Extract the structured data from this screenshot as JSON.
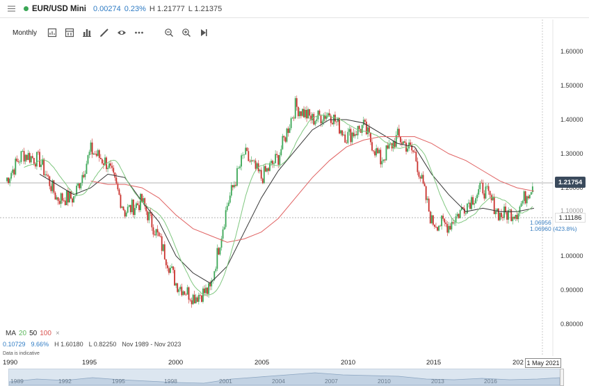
{
  "header": {
    "symbol": "EUR/USD Mini",
    "change": "0.00274",
    "change_pct": "0.23%",
    "high": "H 1.21777",
    "low": "L 1.21375",
    "status_color": "#3aa655"
  },
  "toolbar": {
    "period": "Monthly",
    "icons": [
      "chart-type-icon",
      "indicators-icon",
      "bar-chart-icon",
      "draw-icon",
      "eye-icon",
      "more-icon",
      "zoom-out-icon",
      "zoom-in-icon",
      "skip-to-end-icon"
    ]
  },
  "legend": {
    "ma_label": "MA",
    "ma_20": "20",
    "ma_50": "50",
    "ma_100": "100",
    "ma_close": "×",
    "stats_change": "0.10729",
    "stats_pct": "9.66%",
    "stats_high": "H 1.60180",
    "stats_low": "L 0.82250",
    "stats_range": "Nov 1989 - Nov 2023",
    "disclaimer": "Data is indicative"
  },
  "price_axis": {
    "labels": [
      "1.60000",
      "1.50000",
      "1.40000",
      "1.30000",
      "1.20000",
      "1.10000",
      "1.00000",
      "0.90000",
      "0.80000"
    ],
    "last_price": "1.21754",
    "ref_price": "1.11186",
    "note_1": "1.06956",
    "note_2": "1.06960 (423.8%)"
  },
  "x_axis": {
    "ticks": [
      "1990",
      "1995",
      "2000",
      "2005",
      "2010",
      "2015",
      "202"
    ],
    "date_tag": "1 May 2021"
  },
  "navigator": {
    "ticks": [
      "1989",
      "1992",
      "1995",
      "1998",
      "2001",
      "2004",
      "2007",
      "2010",
      "2013",
      "2016"
    ]
  },
  "chart_data": {
    "type": "line",
    "ylim": [
      0.75,
      1.65
    ],
    "x": [
      1990,
      1991,
      1992,
      1993,
      1994,
      1995,
      1996,
      1997,
      1998,
      1999,
      2000,
      2001,
      2002,
      2003,
      2004,
      2005,
      2006,
      2007,
      2008,
      2009,
      2010,
      2011,
      2012,
      2013,
      2014,
      2015,
      2016,
      2017,
      2018,
      2019,
      2020,
      2021
    ],
    "series": [
      {
        "color": "#4caf50",
        "values": [
          1.22,
          1.3,
          1.28,
          1.17,
          1.17,
          1.31,
          1.27,
          1.13,
          1.16,
          1.05,
          0.92,
          0.88,
          0.9,
          1.15,
          1.3,
          1.23,
          1.29,
          1.44,
          1.4,
          1.42,
          1.35,
          1.38,
          1.28,
          1.35,
          1.3,
          1.1,
          1.09,
          1.15,
          1.2,
          1.12,
          1.13,
          1.22
        ]
      },
      {
        "color": "#333333",
        "values": [
          null,
          null,
          1.24,
          1.21,
          1.18,
          1.2,
          1.24,
          1.23,
          1.16,
          1.1,
          1.0,
          0.95,
          0.92,
          0.97,
          1.07,
          1.17,
          1.25,
          1.31,
          1.37,
          1.4,
          1.4,
          1.39,
          1.36,
          1.33,
          1.32,
          1.24,
          1.18,
          1.13,
          1.14,
          1.13,
          1.13,
          1.14
        ]
      },
      {
        "color": "#e06262",
        "values": [
          null,
          null,
          null,
          null,
          null,
          1.22,
          1.21,
          1.21,
          1.2,
          1.17,
          1.12,
          1.08,
          1.06,
          1.04,
          1.05,
          1.07,
          1.11,
          1.17,
          1.23,
          1.28,
          1.32,
          1.34,
          1.35,
          1.35,
          1.35,
          1.33,
          1.3,
          1.28,
          1.25,
          1.22,
          1.2,
          1.19
        ]
      }
    ]
  }
}
